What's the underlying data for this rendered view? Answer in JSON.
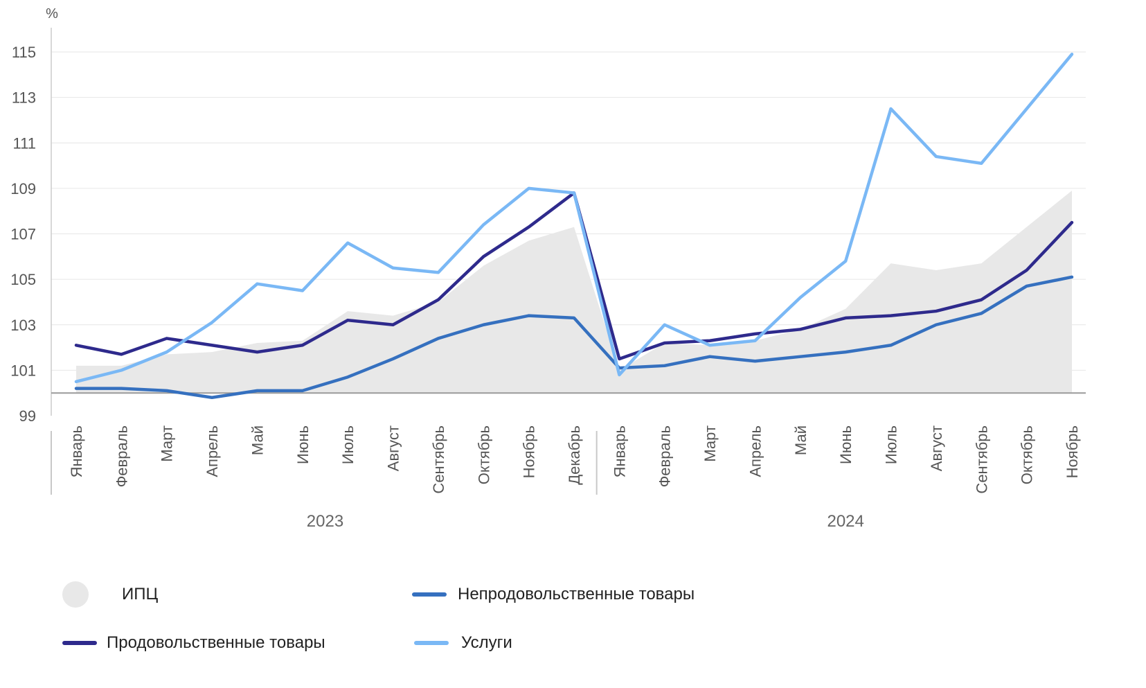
{
  "chart_data": {
    "type": "line",
    "unit_label": "%",
    "ylim": [
      99,
      115
    ],
    "y_ticks": [
      99,
      101,
      103,
      105,
      107,
      109,
      111,
      113,
      115
    ],
    "grid": true,
    "categories": [
      "Январь",
      "Февраль",
      "Март",
      "Апрель",
      "Май",
      "Июнь",
      "Июль",
      "Август",
      "Сентябрь",
      "Октябрь",
      "Ноябрь",
      "Декабрь",
      "Январь",
      "Февраль",
      "Март",
      "Апрель",
      "Май",
      "Июнь",
      "Июль",
      "Август",
      "Сентябрь",
      "Октябрь",
      "Ноябрь"
    ],
    "year_groups": [
      {
        "label": "2023",
        "count": 12
      },
      {
        "label": "2024",
        "count": 11
      }
    ],
    "baseline": 100,
    "legend_position": "bottom",
    "series": [
      {
        "name": "ИПЦ",
        "kind": "area",
        "color": "#e8e8e8",
        "values": [
          101.2,
          101.2,
          101.7,
          101.8,
          102.2,
          102.3,
          103.6,
          103.4,
          104.0,
          105.6,
          106.7,
          107.3,
          101.0,
          102.2,
          102.1,
          102.3,
          102.8,
          103.7,
          105.7,
          105.4,
          105.7,
          107.3,
          108.9
        ]
      },
      {
        "name": "Продовольственные товары",
        "kind": "line",
        "color": "#2e2a8c",
        "values": [
          102.1,
          101.7,
          102.4,
          102.1,
          101.8,
          102.1,
          103.2,
          103.0,
          104.1,
          106.0,
          107.3,
          108.8,
          101.5,
          102.2,
          102.3,
          102.6,
          102.8,
          103.3,
          103.4,
          103.6,
          104.1,
          105.4,
          107.5
        ]
      },
      {
        "name": "Непродовольственные товары",
        "kind": "line",
        "color": "#3570bf",
        "values": [
          100.2,
          100.2,
          100.1,
          99.8,
          100.1,
          100.1,
          100.7,
          101.5,
          102.4,
          103.0,
          103.4,
          103.3,
          101.1,
          101.2,
          101.6,
          101.4,
          101.6,
          101.8,
          102.1,
          103.0,
          103.5,
          104.7,
          105.1
        ]
      },
      {
        "name": "Услуги",
        "kind": "line",
        "color": "#7ab8f5",
        "values": [
          100.5,
          101.0,
          101.8,
          103.1,
          104.8,
          104.5,
          106.6,
          105.5,
          105.3,
          107.4,
          109.0,
          108.8,
          100.8,
          103.0,
          102.1,
          102.3,
          104.2,
          105.8,
          112.5,
          110.4,
          110.1,
          112.5,
          114.9
        ]
      }
    ]
  }
}
